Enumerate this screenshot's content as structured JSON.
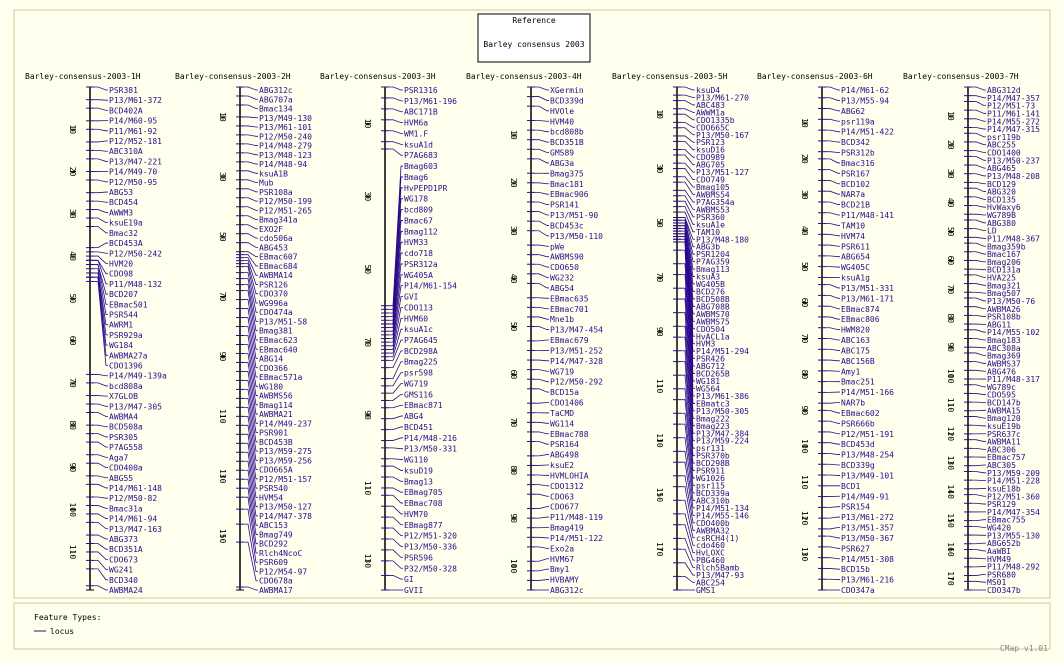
{
  "header": {
    "title": "Reference",
    "subtitle": "Barley consensus 2003"
  },
  "feature_color": "#2b0a8c",
  "maps": [
    {
      "title": "Barley-consensus-2003-1H",
      "range": [
        0,
        119
      ],
      "ticks": [
        10,
        20,
        30,
        40,
        50,
        60,
        70,
        80,
        90,
        100,
        110
      ],
      "features": [
        "PSR381",
        "P13/M61-372",
        "BCD402A",
        "P14/M60-95",
        "P11/M61-92",
        "P12/M52-181",
        "ABC310A",
        "P13/M47-221",
        "P14/M49-70",
        "P12/M50-95",
        "ABG53",
        "BCD454",
        "AWWM3",
        "ksuE19a",
        "Bmac32",
        "BCD453A",
        "P12/M50-242",
        "HVM20",
        "CDO98",
        "P11/M48-132",
        "BCD207",
        "EBmac501",
        "PSR544",
        "AWRM1",
        "PSR929a",
        "WG184",
        "AWBMA27a",
        "CDO1396",
        "P14/M49-139a",
        "bcd808a",
        "X7GLOB",
        "P13/M47-305",
        "AWBMA4",
        "BCD508a",
        "PSR305",
        "P7AG558",
        "Aga7",
        "CDO400a",
        "ABG55",
        "P14/M61-148",
        "P12/M50-82",
        "Bmac31a",
        "P14/M61-94",
        "P13/M47-163",
        "ABG373",
        "BCD351A",
        "CDO673",
        "WG241",
        "BCD340",
        "AWBMA24"
      ],
      "positions": [
        0,
        3,
        5,
        8,
        10,
        13,
        15,
        17,
        20,
        22,
        25,
        27,
        29,
        31,
        33,
        38,
        39,
        40,
        41,
        41,
        42,
        42,
        43,
        44,
        44,
        45,
        45,
        46,
        68,
        70,
        73,
        75,
        77,
        80,
        82,
        84,
        87,
        89,
        92,
        94,
        97,
        99,
        101,
        103,
        106,
        108,
        110,
        112,
        114,
        118
      ]
    },
    {
      "title": "Barley-consensus-2003-2H",
      "range": [
        0,
        168
      ],
      "ticks": [
        10,
        30,
        50,
        70,
        90,
        110,
        130,
        150
      ],
      "features": [
        "ABG312c",
        "ABG707a",
        "Bmac134",
        "P13/M49-130",
        "P13/M61-101",
        "P12/M50-240",
        "P14/M48-279",
        "P13/M48-123",
        "P14/M48-94",
        "ksuA1B",
        "Mub",
        "PSR108a",
        "P12/M50-199",
        "P12/M51-265",
        "Bmag341a",
        "EXO2F",
        "cdo506a",
        "ABG453",
        "EBmac607",
        "EBmac684",
        "AWBMA14",
        "PSR126",
        "CDO370",
        "WG996a",
        "CDO474a",
        "P13/M51-58",
        "Bmag381",
        "EBmac623",
        "EBmac640",
        "ABG14",
        "CDO366",
        "EBmac571a",
        "WG180",
        "AWBMS56",
        "Bmag114",
        "AWBMA21",
        "P14/M49-237",
        "PSR901",
        "BCD453B",
        "P13/M59-275",
        "P13/M59-256",
        "CDO665A",
        "P12/M51-157",
        "PSR540",
        "HVM54",
        "P13/M50-127",
        "P14/M47-378",
        "ABC153",
        "Bmag749",
        "BCD292",
        "Rlch4NcoC",
        "PSR609",
        "P12/M54-97",
        "CDO678a",
        "AWBMA17"
      ],
      "positions": [
        0,
        3,
        6,
        10,
        13,
        16,
        19,
        22,
        25,
        28,
        31,
        34,
        37,
        40,
        43,
        46,
        49,
        52,
        55,
        56,
        57,
        58,
        59,
        60,
        62,
        64,
        66,
        68,
        71,
        74,
        77,
        80,
        83,
        86,
        89,
        92,
        95,
        98,
        101,
        104,
        107,
        110,
        113,
        116,
        119,
        122,
        125,
        128,
        131,
        134,
        137,
        141,
        146,
        152,
        167
      ]
    },
    {
      "title": "Barley-consensus-2003-3H",
      "range": [
        0,
        138
      ],
      "ticks": [
        10,
        30,
        50,
        70,
        90,
        110,
        130
      ],
      "features": [
        "PSR1316",
        "P13/M61-196",
        "ABC171B",
        "HVM6a",
        "WM1.F",
        "ksuA1d",
        "P7AG683",
        "Bmag603",
        "Bmag6",
        "HvPEPD1PR",
        "WG178",
        "bcd809",
        "Bmac67",
        "Bmag112",
        "HVM33",
        "cdo718",
        "PSR312a",
        "WG405A",
        "P14/M61-154",
        "GVI",
        "CDO113",
        "HVM60",
        "ksuA1c",
        "P7AG645",
        "BCD298A",
        "Bmag225",
        "psr598",
        "WG719",
        "GMS116",
        "EBmac871",
        "ABG4",
        "BCD451",
        "P14/M48-216",
        "P13/M50-331",
        "WG110",
        "ksuD19",
        "Bmag13",
        "EBmag705",
        "EBmac708",
        "HVM70",
        "EBmag877",
        "P12/M51-320",
        "P13/M50-336",
        "PSR596",
        "P32/M50-328",
        "GI",
        "GVII"
      ],
      "positions": [
        0,
        3,
        6,
        9,
        12,
        15,
        17,
        60,
        61,
        62,
        63,
        64,
        65,
        65,
        66,
        67,
        68,
        69,
        70,
        71,
        72,
        73,
        74,
        75,
        77,
        80,
        82,
        84,
        86,
        88,
        91,
        94,
        97,
        99,
        102,
        104,
        107,
        110,
        112,
        115,
        118,
        121,
        124,
        127,
        130,
        134,
        138
      ]
    },
    {
      "title": "Barley-consensus-2003-4H",
      "range": [
        0,
        105
      ],
      "ticks": [
        10,
        20,
        30,
        40,
        50,
        60,
        70,
        80,
        90,
        100
      ],
      "features": [
        "XGermin",
        "BCD339d",
        "HVOle",
        "HVM40",
        "bcd808b",
        "BCD351B",
        "GMS89",
        "ABG3a",
        "Bmag375",
        "Bmac181",
        "EBmac906",
        "PSR141",
        "P13/M51-90",
        "BCD453c",
        "P13/M50-110",
        "pWe",
        "AWBMS90",
        "CDO650",
        "WG232",
        "ABG54",
        "EBmac635",
        "EBmac701",
        "Mne1b",
        "P13/M47-454",
        "EBmac679",
        "P13/M51-252",
        "P14/M47-328",
        "WG719",
        "P12/M50-292",
        "BCD15a",
        "CDO1406",
        "TaCMD",
        "WG114",
        "EBmac788",
        "PSR164",
        "ABG498",
        "ksuE2",
        "HVMLOHIA",
        "CDO1312",
        "CDO63",
        "CDO677",
        "P11/M48-119",
        "Bmag419",
        "P14/M51-122",
        "Exo2a",
        "HVM67",
        "Bmy1",
        "HVBAMY",
        "ABG312c"
      ],
      "positions": [
        0,
        2,
        4,
        7,
        9,
        11,
        13,
        15,
        18,
        20,
        22,
        24,
        26,
        28,
        30,
        33,
        35,
        37,
        39,
        41,
        44,
        46,
        48,
        50,
        53,
        55,
        57,
        59,
        61,
        63,
        66,
        68,
        70,
        72,
        74,
        77,
        79,
        81,
        83,
        85,
        88,
        90,
        92,
        94,
        96,
        99,
        101,
        103,
        105
      ]
    },
    {
      "title": "Barley-consensus-2003-5H",
      "range": [
        0,
        185
      ],
      "ticks": [
        10,
        30,
        50,
        70,
        90,
        110,
        130,
        150,
        170
      ],
      "features": [
        "ksuD4",
        "P13/M61-270",
        "ABC483",
        "AWWM1a",
        "CDO1335b",
        "CDO665C",
        "P13/M50-167",
        "PSR123",
        "ksuD16",
        "CDO989",
        "ABG705",
        "P13/M51-127",
        "CDO749",
        "Bmag105",
        "AWBMS54",
        "P7AG354a",
        "AWBMS53",
        "PSR360",
        "ksuA1e",
        "TAM10",
        "P13/M48-180",
        "ABG3b",
        "PSR1204",
        "P7AG359",
        "Bmag113",
        "ksuA3",
        "WG405B",
        "BCD276",
        "BCD508B",
        "ABG708B",
        "AWBMS70",
        "AWBMS75",
        "CDO504",
        "HvACL1a",
        "HVM3",
        "P14/M51-294",
        "PSR426",
        "ABG712",
        "BCD265B",
        "WG181",
        "WG564",
        "P13/M61-386",
        "EBmatc3",
        "P13/M50-305",
        "Bmag222",
        "Bmag223",
        "P13/M47-384",
        "P13/M59-224",
        "psr131",
        "PSR370b",
        "BCD298B",
        "PSR911",
        "WG1026",
        "psr115",
        "BCD339a",
        "ABC310b",
        "P14/M51-134",
        "P14/M55-146",
        "CDO400b",
        "AWBMA32",
        "csRCH4(1)",
        "cdo460",
        "HvLOXC",
        "PBG460",
        "Rlch5Bamb",
        "P13/M47-93",
        "ABC254",
        "GMS1"
      ],
      "positions": [
        0,
        3,
        5,
        8,
        10,
        13,
        15,
        18,
        20,
        23,
        25,
        28,
        30,
        33,
        35,
        38,
        40,
        42,
        44,
        46,
        48,
        48,
        49,
        49,
        50,
        50,
        51,
        51,
        52,
        52,
        53,
        53,
        54,
        54,
        55,
        55,
        56,
        56,
        57,
        57,
        60,
        65,
        69,
        74,
        78,
        83,
        88,
        92,
        97,
        101,
        106,
        111,
        115,
        120,
        124,
        129,
        134,
        138,
        143,
        147,
        152,
        157,
        161,
        166,
        170,
        175,
        180,
        185
      ]
    },
    {
      "title": "Barley-consensus-2003-6H",
      "range": [
        0,
        140
      ],
      "ticks": [
        10,
        20,
        30,
        40,
        50,
        60,
        70,
        80,
        90,
        100,
        110,
        120,
        130
      ],
      "features": [
        "P14/M61-62",
        "P13/M55-94",
        "ABG62",
        "psr119a",
        "P14/M51-422",
        "BCD342",
        "PSR312b",
        "Bmac316",
        "PSR167",
        "BCD102",
        "NAR7a",
        "BCD21B",
        "P11/M48-141",
        "TAM10",
        "HVM74",
        "PSR611",
        "ABG654",
        "WG405C",
        "ksuA1g",
        "P13/M51-331",
        "P13/M61-171",
        "EBmac874",
        "EBmac806",
        "HWM820",
        "ABC163",
        "ABC175",
        "ABC156B",
        "Amy1",
        "Bmac251",
        "P14/M51-166",
        "NAR7b",
        "EBmac602",
        "PSR666b",
        "P12/M51-191",
        "BCD453d",
        "P13/M48-254",
        "BCD339g",
        "P13/M49-101",
        "BCD1",
        "P14/M49-91",
        "PSR154",
        "P13/M61-272",
        "P13/M51-357",
        "P13/M50-367",
        "PSR627",
        "P14/M51-308",
        "BCD15b",
        "P13/M61-216",
        "CDO347a"
      ],
      "positions": [
        0,
        3,
        6,
        9,
        12,
        15,
        18,
        20,
        23,
        26,
        29,
        32,
        35,
        38,
        41,
        44,
        47,
        50,
        53,
        55,
        58,
        61,
        64,
        67,
        70,
        73,
        76,
        79,
        82,
        85,
        88,
        90,
        93,
        96,
        99,
        102,
        105,
        108,
        111,
        114,
        117,
        120,
        123,
        125,
        128,
        131,
        134,
        137,
        140
      ]
    },
    {
      "title": "Barley-consensus-2003-7H",
      "range": [
        0,
        174
      ],
      "ticks": [
        10,
        20,
        30,
        40,
        50,
        60,
        70,
        80,
        90,
        100,
        110,
        120,
        130,
        140,
        150,
        160,
        170
      ],
      "features": [
        "ABG312d",
        "P14/M47-357",
        "P12/M51-73",
        "P11/M61-141",
        "P14/M55-272",
        "P14/M47-315",
        "psr119b",
        "ABC255",
        "CDO1400",
        "P13/M50-237",
        "ABG465",
        "P13/M48-208",
        "BCD129",
        "ABG320",
        "BCD135",
        "HvWaxy6",
        "WG789B",
        "ABG380",
        "LD",
        "P11/M48-367",
        "Bmag359b",
        "Bmac167",
        "Bmag206",
        "BCD131a",
        "HVA225",
        "Bmag321",
        "Bmag507",
        "P13/M50-76",
        "AWBMA26",
        "PSR108b",
        "ABG11",
        "P14/M55-102",
        "Bmag183",
        "ABC308a",
        "Bmag369",
        "AWBMS37",
        "ABG476",
        "P11/M48-317",
        "WG789c",
        "CDO595",
        "BCD147b",
        "AWBMA15",
        "Bmag120",
        "ksuE19b",
        "PSR637c",
        "AWBMA11",
        "ABC306",
        "EBmac757",
        "ABC305",
        "P13/M59-209",
        "P14/M51-228",
        "ksuE18b",
        "P12/M51-360",
        "PSR129",
        "P14/M47-354",
        "EBmac755",
        "WG420",
        "P13/M55-130",
        "ABG652b",
        "AaWBI",
        "HVM49",
        "P11/M48-292",
        "PSR680",
        "MS01",
        "CDO347b"
      ],
      "positions": [
        0,
        3,
        5,
        8,
        11,
        14,
        16,
        19,
        22,
        24,
        27,
        30,
        33,
        35,
        38,
        41,
        44,
        46,
        49,
        52,
        54,
        57,
        60,
        63,
        65,
        68,
        71,
        73,
        76,
        79,
        82,
        84,
        87,
        90,
        92,
        95,
        98,
        101,
        103,
        106,
        109,
        112,
        114,
        117,
        120,
        122,
        125,
        128,
        131,
        133,
        136,
        139,
        141,
        144,
        147,
        150,
        152,
        155,
        158,
        160,
        163,
        166,
        169,
        171,
        174
      ]
    }
  ],
  "legend": {
    "title": "Feature Types:",
    "items": [
      "locus"
    ]
  },
  "version": "CMap v1.01"
}
